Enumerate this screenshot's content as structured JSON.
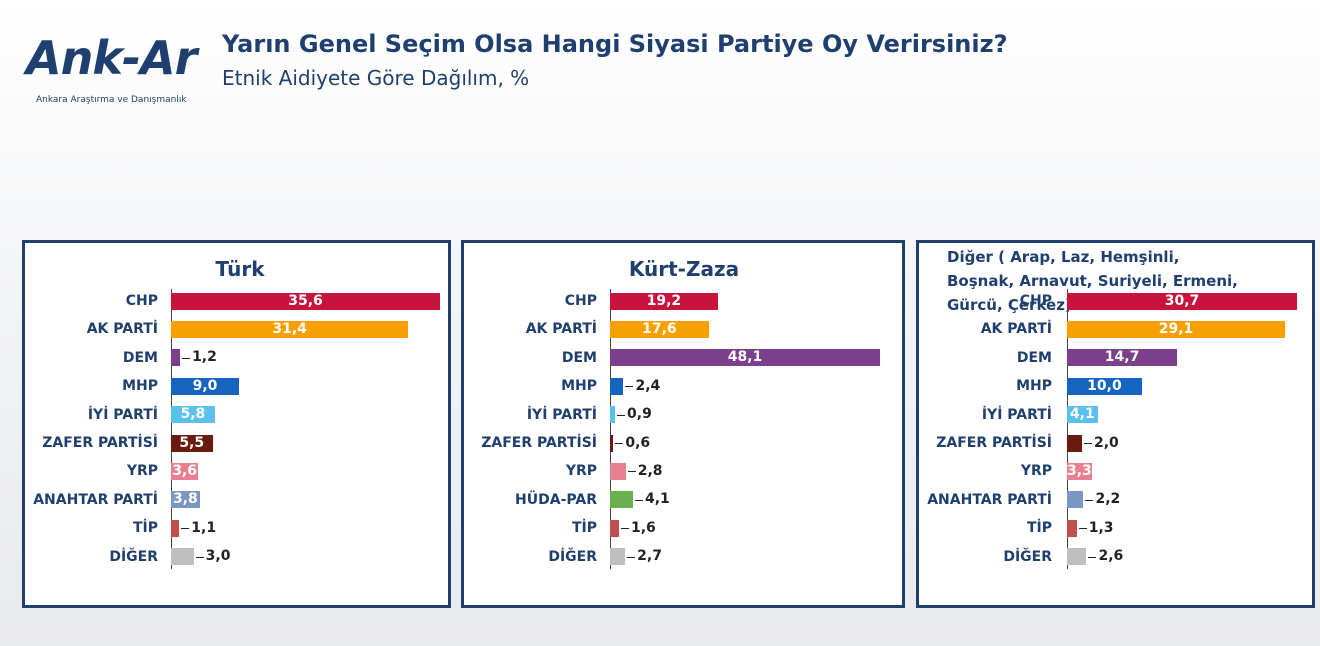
{
  "header": {
    "logo": "Ank-Ar",
    "logo_subtitle": "Ankara Araştırma ve Danışmanlık",
    "title": "Yarın Genel Seçim Olsa Hangi Siyasi Partiye Oy Verirsiniz?",
    "subtitle": "Etnik Aidiyete Göre Dağılım, %"
  },
  "chart_data": [
    {
      "type": "bar",
      "orientation": "horizontal",
      "title": "Türk",
      "categories": [
        "CHP",
        "AK PARTİ",
        "DEM",
        "MHP",
        "İYİ PARTİ",
        "ZAFER PARTİSİ",
        "YRP",
        "ANAHTAR PARTİ",
        "TİP",
        "DİĞER"
      ],
      "values": [
        35.6,
        31.4,
        1.2,
        9.0,
        5.8,
        5.5,
        3.6,
        3.8,
        1.1,
        3.0
      ],
      "value_labels": [
        "35,6",
        "31,4",
        "1,2",
        "9,0",
        "5,8",
        "5,5",
        "3,6",
        "3,8",
        "1,1",
        "3,0"
      ],
      "colors": [
        "#c8133c",
        "#f7a000",
        "#7b3f8c",
        "#1565c0",
        "#5bc0eb",
        "#6b1a0f",
        "#e8808f",
        "#7b96c2",
        "#c0504d",
        "#bfbfbf"
      ]
    },
    {
      "type": "bar",
      "orientation": "horizontal",
      "title": "Kürt-Zaza",
      "categories": [
        "CHP",
        "AK PARTİ",
        "DEM",
        "MHP",
        "İYİ PARTİ",
        "ZAFER PARTİSİ",
        "YRP",
        "HÜDA-PAR",
        "TİP",
        "DİĞER"
      ],
      "values": [
        19.2,
        17.6,
        48.1,
        2.4,
        0.9,
        0.6,
        2.8,
        4.1,
        1.6,
        2.7
      ],
      "value_labels": [
        "19,2",
        "17,6",
        "48,1",
        "2,4",
        "0,9",
        "0,6",
        "2,8",
        "4,1",
        "1,6",
        "2,7"
      ],
      "colors": [
        "#c8133c",
        "#f7a000",
        "#7b3f8c",
        "#1565c0",
        "#5bc0eb",
        "#6b1a0f",
        "#e8808f",
        "#6ab04c",
        "#c0504d",
        "#bfbfbf"
      ]
    },
    {
      "type": "bar",
      "orientation": "horizontal",
      "title": "Diğer ( Arap, Laz, Hemşinli, Boşnak, Arnavut, Suriyeli, Ermeni, Gürcü, Çerkez)",
      "categories": [
        "CHP",
        "AK PARTİ",
        "DEM",
        "MHP",
        "İYİ PARTİ",
        "ZAFER PARTİSİ",
        "YRP",
        "ANAHTAR PARTİ",
        "TİP",
        "DİĞER"
      ],
      "values": [
        30.7,
        29.1,
        14.7,
        10.0,
        4.1,
        2.0,
        3.3,
        2.2,
        1.3,
        2.6
      ],
      "value_labels": [
        "30,7",
        "29,1",
        "14,7",
        "10,0",
        "4,1",
        "2,0",
        "3,3",
        "2,2",
        "1,3",
        "2,6"
      ],
      "colors": [
        "#c8133c",
        "#f7a000",
        "#7b3f8c",
        "#1565c0",
        "#5bc0eb",
        "#6b1a0f",
        "#e8808f",
        "#7b96c2",
        "#c0504d",
        "#bfbfbf"
      ]
    }
  ]
}
